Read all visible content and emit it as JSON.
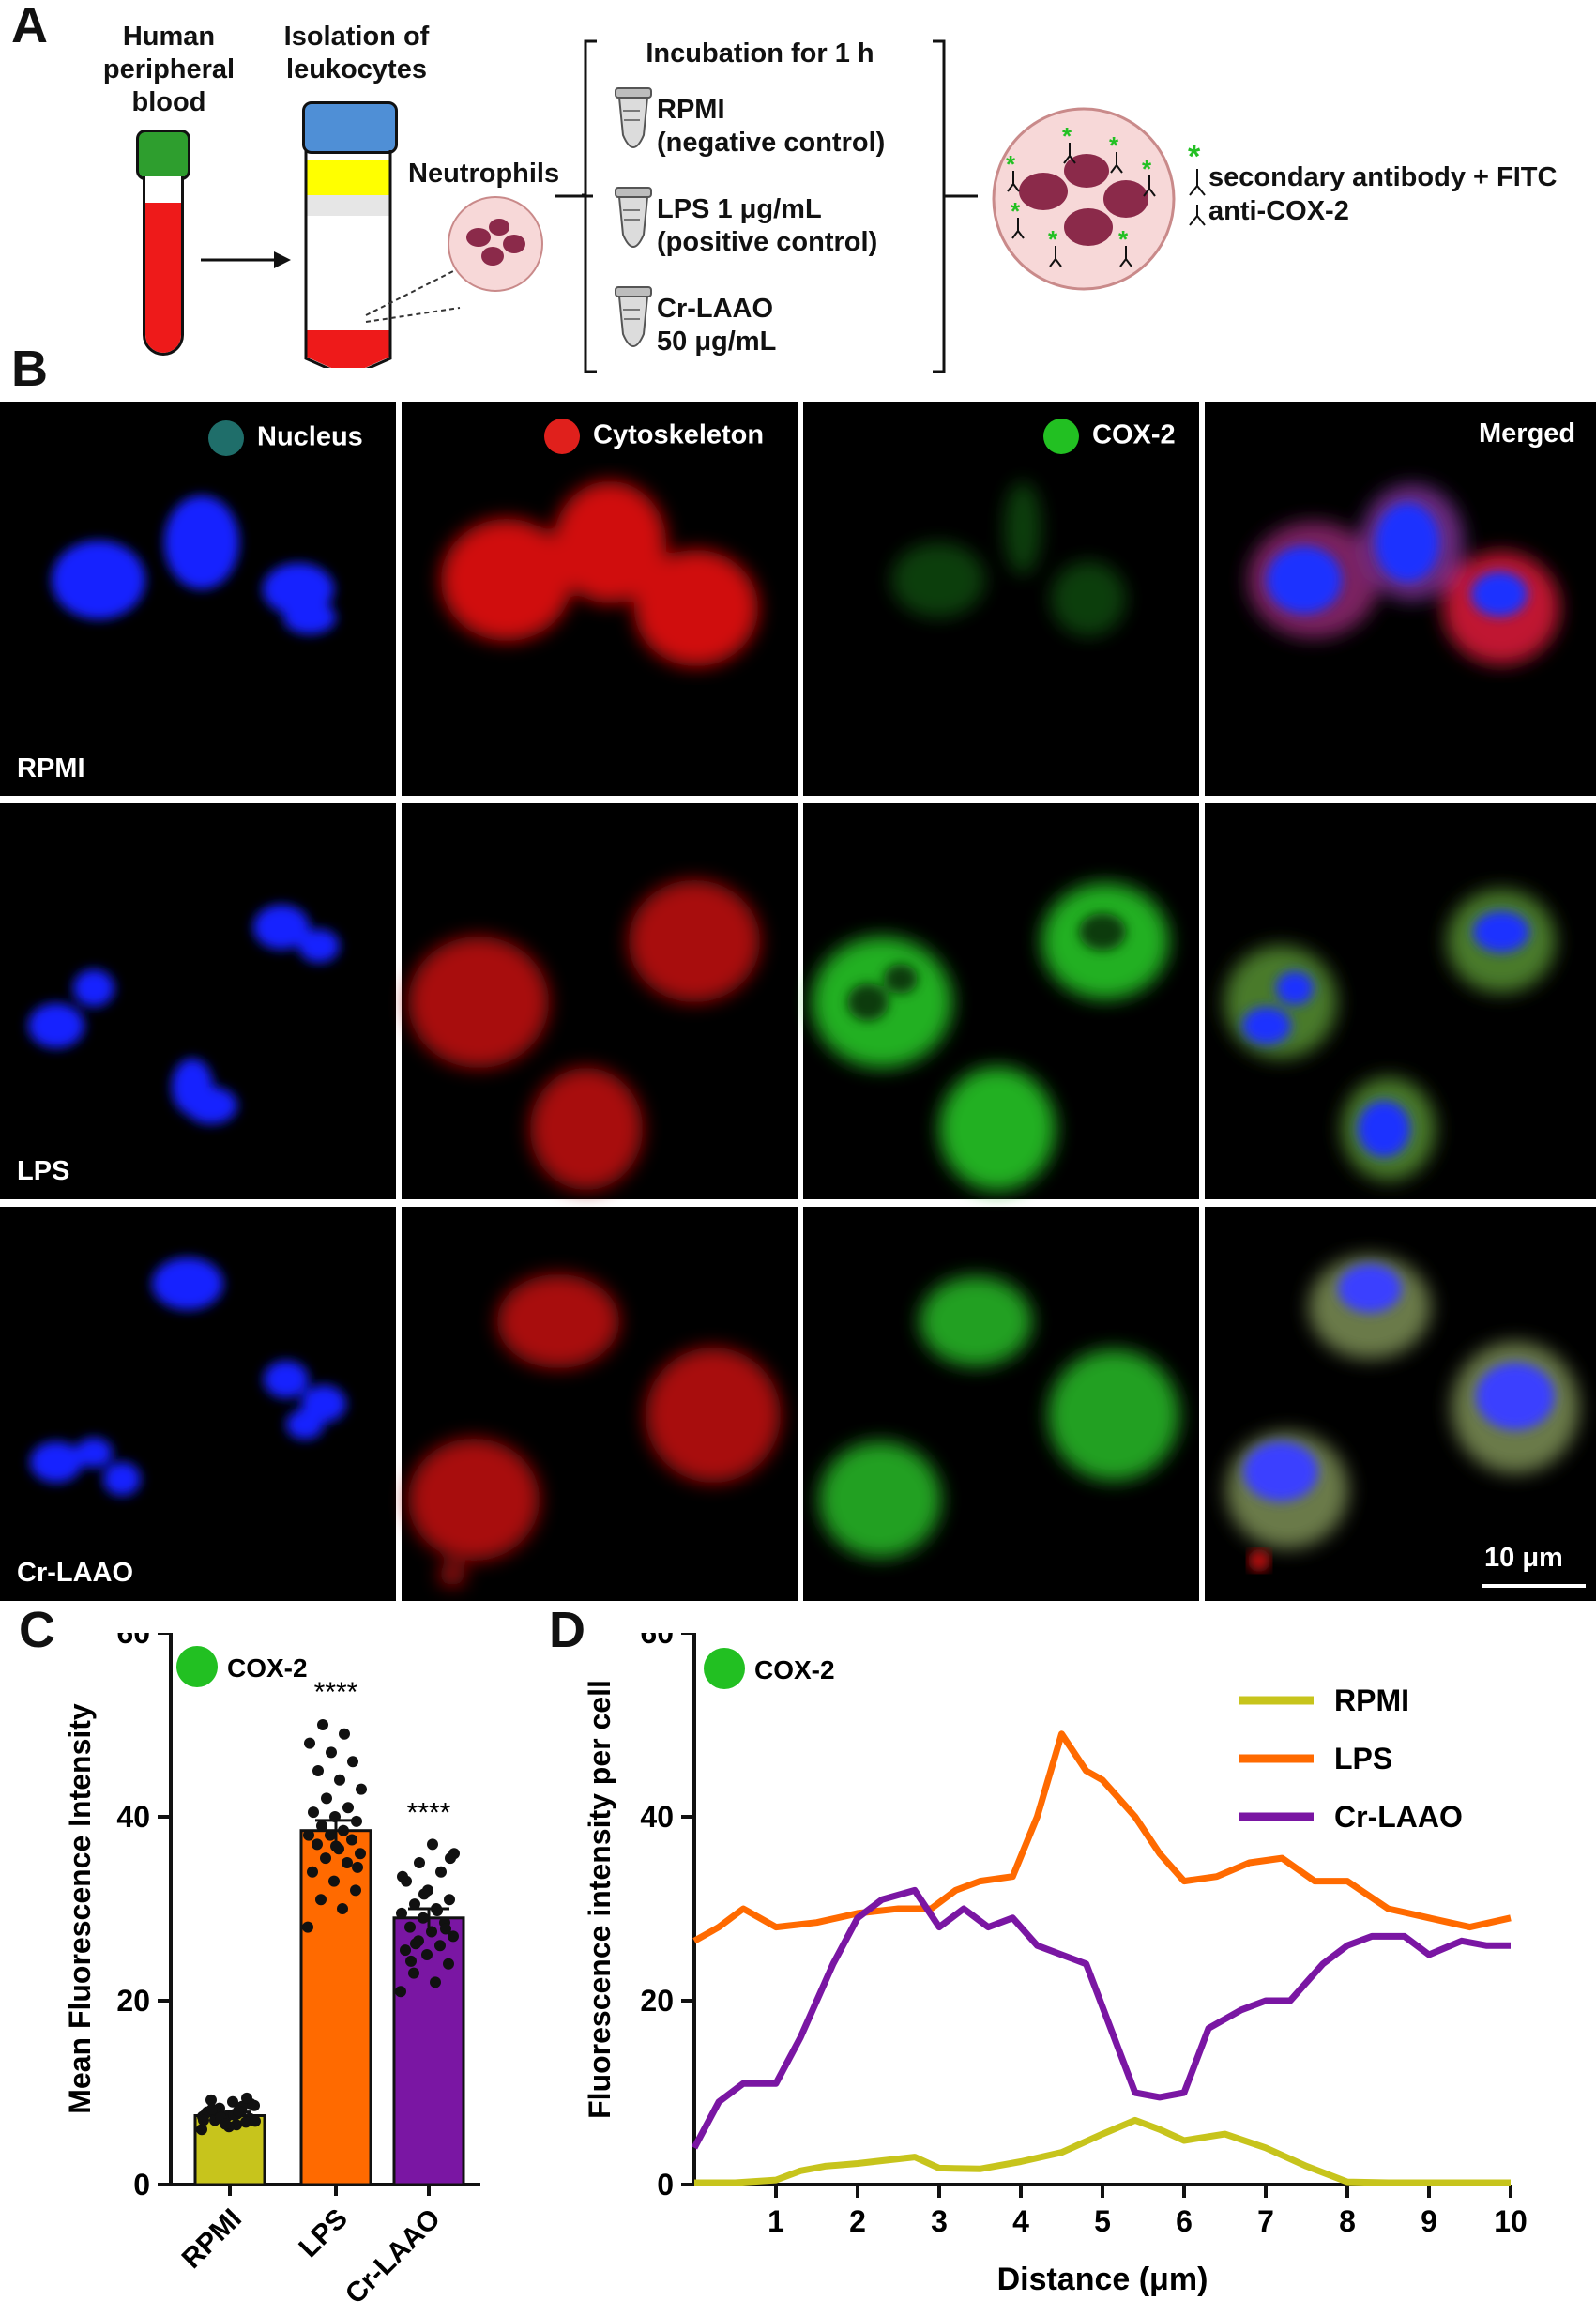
{
  "panels": {
    "a": "A",
    "b": "B",
    "c": "C",
    "d": "D"
  },
  "schematic": {
    "blood": "Human\nperipheral\nblood",
    "isolation": "Isolation of\nleukocytes",
    "neutrophils": "Neutrophils",
    "incubation_title": "Incubation for 1 h",
    "conditions": [
      {
        "line1": "RPMI",
        "line2": "(negative control)"
      },
      {
        "line1": "LPS 1 μg/mL",
        "line2": "(positive control)"
      },
      {
        "line1": "Cr-LAAO",
        "line2": "50 μg/mL"
      }
    ],
    "legend_secondary": "secondary antibody + FITC",
    "legend_primary": "anti-COX-2"
  },
  "microscopy": {
    "channels": [
      {
        "label": "Nucleus",
        "color": "#1f6e6a"
      },
      {
        "label": "Cytoskeleton",
        "color": "#e0201c"
      },
      {
        "label": "COX-2",
        "color": "#22c022"
      },
      {
        "label": "Merged",
        "color": ""
      }
    ],
    "rows": [
      "RPMI",
      "LPS",
      "Cr-LAAO"
    ],
    "scale_bar": "10 μm"
  },
  "chart_data": [
    {
      "type": "bar",
      "legend": "COX-2",
      "legend_color": "#22c022",
      "ylabel": "Mean Fluorescence Intensity",
      "ylim": [
        0,
        60
      ],
      "yticks": [
        0,
        20,
        40,
        60
      ],
      "categories": [
        "RPMI",
        "LPS",
        "Cr-LAAO"
      ],
      "values": [
        7.5,
        38.5,
        29
      ],
      "errors": [
        0.4,
        1.1,
        1.0
      ],
      "colors": [
        "#c7c41c",
        "#ff6a00",
        "#7a16a3"
      ],
      "annotations": [
        "",
        "****",
        "****"
      ],
      "points": [
        [
          6,
          6.5,
          7,
          7.2,
          7.5,
          7.8,
          8,
          8.3,
          8.6,
          9,
          9.2,
          6.8,
          7.1,
          7.4,
          7.7,
          8.1,
          8.8,
          6.3,
          7.9,
          8.5,
          7.3,
          6.9,
          7.6,
          8.2,
          9.4,
          6.6,
          7.0,
          8.0
        ],
        [
          28,
          30,
          31,
          32,
          33,
          34,
          35,
          35.5,
          36,
          36.5,
          37,
          37.5,
          38,
          38,
          38.5,
          39,
          39.5,
          40,
          40.5,
          41,
          42,
          43,
          44,
          45,
          46,
          47,
          48,
          49,
          50,
          34.5,
          36.8
        ],
        [
          21,
          22,
          23,
          24,
          25,
          25.5,
          26,
          26.5,
          27,
          27.5,
          28,
          28.5,
          29,
          29.5,
          30,
          30.5,
          31,
          32,
          33,
          34,
          35,
          36,
          37,
          24.3,
          27.8,
          31.6,
          33.5,
          29.8,
          26.2,
          35.5
        ]
      ]
    },
    {
      "type": "line",
      "legend": "COX-2",
      "legend_color": "#22c022",
      "xlabel": "Distance (μm)",
      "ylabel": "Fluorescence intensity per cell",
      "xlim": [
        0,
        10
      ],
      "ylim": [
        0,
        60
      ],
      "xticks": [
        1,
        2,
        3,
        4,
        5,
        6,
        7,
        8,
        9,
        10
      ],
      "yticks": [
        0,
        20,
        40,
        60
      ],
      "series": [
        {
          "name": "RPMI",
          "color": "#c7c41c",
          "x": [
            0,
            0.5,
            1,
            1.3,
            1.6,
            2.0,
            2.3,
            2.7,
            3.0,
            3.5,
            4.0,
            4.5,
            5.0,
            5.4,
            5.7,
            6.0,
            6.5,
            7.0,
            7.5,
            8.0,
            8.5,
            9.0,
            9.5,
            10
          ],
          "y": [
            0.2,
            0.2,
            0.5,
            1.5,
            2.0,
            2.3,
            2.6,
            3.0,
            1.8,
            1.7,
            2.5,
            3.5,
            5.5,
            7.0,
            6.0,
            4.8,
            5.5,
            4.0,
            2.0,
            0.3,
            0.2,
            0.2,
            0.2,
            0.2
          ]
        },
        {
          "name": "LPS",
          "color": "#ff6a00",
          "x": [
            0,
            0.3,
            0.6,
            1.0,
            1.5,
            2.0,
            2.5,
            2.9,
            3.2,
            3.5,
            3.9,
            4.2,
            4.5,
            4.8,
            5.0,
            5.4,
            5.7,
            6.0,
            6.4,
            6.8,
            7.2,
            7.6,
            8.0,
            8.5,
            9.0,
            9.5,
            10
          ],
          "y": [
            26.5,
            28,
            30,
            28,
            28.5,
            29.5,
            30,
            30,
            32,
            33,
            33.5,
            40,
            49,
            45,
            44,
            40,
            36,
            33,
            33.5,
            35,
            35.5,
            33,
            33,
            30,
            29,
            28,
            29
          ]
        },
        {
          "name": "Cr-LAAO",
          "color": "#7a16a3",
          "x": [
            0,
            0.3,
            0.6,
            1.0,
            1.3,
            1.7,
            2.0,
            2.3,
            2.7,
            3.0,
            3.3,
            3.6,
            3.9,
            4.2,
            4.5,
            4.8,
            5.1,
            5.4,
            5.7,
            6.0,
            6.3,
            6.7,
            7.0,
            7.3,
            7.7,
            8.0,
            8.3,
            8.7,
            9.0,
            9.4,
            9.7,
            10
          ],
          "y": [
            4,
            9,
            11,
            11,
            16,
            24,
            29,
            31,
            32,
            28,
            30,
            28,
            29,
            26,
            25,
            24,
            17,
            10,
            9.5,
            10,
            17,
            19,
            20,
            20,
            24,
            26,
            27,
            27,
            25,
            26.5,
            26,
            26
          ]
        }
      ]
    }
  ]
}
